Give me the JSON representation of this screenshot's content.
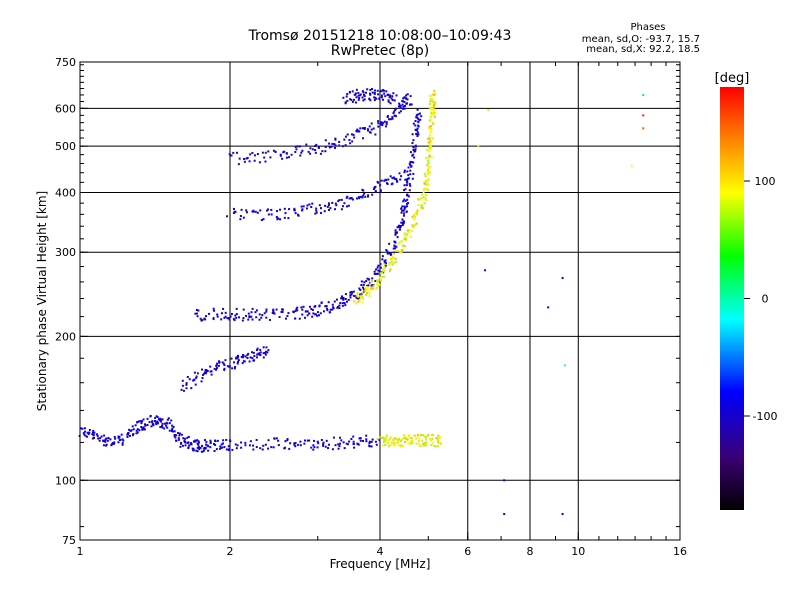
{
  "chart_data": {
    "type": "scatter",
    "title": "Tromsø 20151218 10:08:00–10:09:43",
    "subtitle": "RwPretec (8p)",
    "xlabel": "Frequency [MHz]",
    "ylabel": "Stationary phase Virtual Height [km]",
    "x_scale": "log",
    "y_scale": "log",
    "xlim": [
      1,
      16
    ],
    "ylim": [
      75,
      750
    ],
    "x_ticks": [
      1,
      2,
      4,
      6,
      8,
      10,
      16
    ],
    "y_ticks": [
      75,
      100,
      200,
      300,
      400,
      500,
      600,
      750
    ],
    "grid_x": [
      2,
      4,
      6,
      8,
      10
    ],
    "grid_y": [
      100,
      200,
      300,
      400,
      500,
      600
    ],
    "grid": true,
    "stats": {
      "title": "Phases",
      "line_o": "mean, sd,O: -93.7, 15.7",
      "line_x": "mean, sd,X: 92.2, 18.5"
    },
    "colorbar": {
      "label": "[deg]",
      "range": [
        -180,
        180
      ],
      "ticks": [
        "100",
        "0",
        "-100"
      ],
      "tick_values": [
        100,
        0,
        -100
      ]
    },
    "traces": [
      {
        "name": "",
        "phase": -100,
        "points": [
          [
            1.0,
            127
          ],
          [
            1.1,
            122
          ],
          [
            1.2,
            120
          ],
          [
            1.3,
            129
          ],
          [
            1.4,
            133
          ],
          [
            1.5,
            131
          ],
          [
            1.6,
            121
          ],
          [
            1.7,
            118
          ],
          [
            1.8,
            118
          ],
          [
            2.0,
            118
          ],
          [
            2.5,
            119
          ],
          [
            3.0,
            119
          ],
          [
            3.5,
            120
          ],
          [
            4.0,
            121
          ]
        ]
      },
      {
        "name": "",
        "phase": 100,
        "points": [
          [
            4.0,
            121
          ],
          [
            4.3,
            121
          ],
          [
            4.6,
            121
          ],
          [
            5.0,
            121
          ],
          [
            5.3,
            121
          ]
        ]
      },
      {
        "name": "",
        "phase": -100,
        "points": [
          [
            1.7,
            222
          ],
          [
            2.0,
            222
          ],
          [
            2.3,
            222
          ],
          [
            2.7,
            223
          ],
          [
            3.0,
            227
          ],
          [
            3.3,
            233
          ],
          [
            3.6,
            247
          ],
          [
            3.9,
            266
          ],
          [
            4.2,
            300
          ],
          [
            4.4,
            340
          ],
          [
            4.5,
            380
          ],
          [
            4.6,
            440
          ],
          [
            4.7,
            520
          ],
          [
            4.8,
            600
          ]
        ]
      },
      {
        "name": "",
        "phase": 100,
        "points": [
          [
            3.6,
            240
          ],
          [
            3.8,
            250
          ],
          [
            4.1,
            275
          ],
          [
            4.4,
            310
          ],
          [
            4.7,
            350
          ],
          [
            4.9,
            400
          ],
          [
            5.0,
            450
          ],
          [
            5.05,
            520
          ],
          [
            5.1,
            600
          ],
          [
            5.1,
            640
          ]
        ]
      },
      {
        "name": "",
        "phase": -100,
        "points": [
          [
            2.0,
            360
          ],
          [
            2.5,
            360
          ],
          [
            3.0,
            370
          ],
          [
            3.5,
            385
          ],
          [
            4.0,
            410
          ],
          [
            4.5,
            440
          ]
        ]
      },
      {
        "name": "",
        "phase": -100,
        "points": [
          [
            2.0,
            470
          ],
          [
            2.5,
            480
          ],
          [
            3.0,
            495
          ],
          [
            3.5,
            520
          ],
          [
            4.0,
            550
          ],
          [
            4.4,
            600
          ],
          [
            4.6,
            630
          ]
        ]
      },
      {
        "name": "",
        "phase": -100,
        "points": [
          [
            1.6,
            155
          ],
          [
            1.8,
            170
          ],
          [
            2.0,
            175
          ],
          [
            2.2,
            180
          ],
          [
            2.4,
            190
          ]
        ]
      },
      {
        "name": "",
        "phase": -100,
        "points": [
          [
            3.4,
            630
          ],
          [
            3.7,
            640
          ],
          [
            4.0,
            640
          ],
          [
            4.3,
            630
          ]
        ]
      }
    ],
    "scattered": [
      {
        "x": 6.5,
        "y": 275,
        "phase": -100
      },
      {
        "x": 7.1,
        "y": 100,
        "phase": -100
      },
      {
        "x": 9.3,
        "y": 265,
        "phase": -100
      },
      {
        "x": 9.4,
        "y": 174,
        "phase": 0
      },
      {
        "x": 8.7,
        "y": 230,
        "phase": -100
      },
      {
        "x": 9.3,
        "y": 85,
        "phase": -100
      },
      {
        "x": 7.1,
        "y": 85,
        "phase": -100
      },
      {
        "x": 12.8,
        "y": 455,
        "phase": 100
      },
      {
        "x": 13.5,
        "y": 640,
        "phase": 30
      },
      {
        "x": 13.5,
        "y": 580,
        "phase": 170
      },
      {
        "x": 13.5,
        "y": 545,
        "phase": 150
      },
      {
        "x": 6.6,
        "y": 595,
        "phase": 110
      },
      {
        "x": 6.3,
        "y": 500,
        "phase": 110
      }
    ]
  }
}
